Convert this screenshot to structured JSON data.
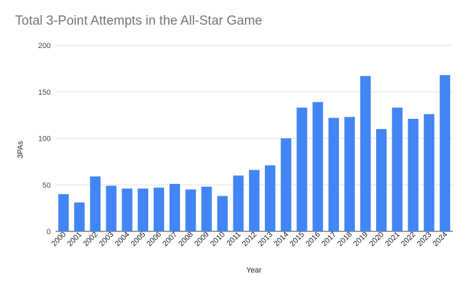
{
  "chart_data": {
    "type": "bar",
    "title": "Total 3-Point Attempts in the All-Star Game",
    "xlabel": "Year",
    "ylabel": "3PAs",
    "categories": [
      "2000",
      "2001",
      "2002",
      "2003",
      "2004",
      "2005",
      "2006",
      "2007",
      "2008",
      "2009",
      "2010",
      "2011",
      "2012",
      "2013",
      "2014",
      "2015",
      "2016",
      "2017",
      "2018",
      "2019",
      "2020",
      "2021",
      "2022",
      "2023",
      "2024"
    ],
    "values": [
      40,
      31,
      59,
      49,
      46,
      46,
      47,
      51,
      45,
      48,
      38,
      60,
      66,
      71,
      100,
      133,
      139,
      122,
      123,
      167,
      110,
      133,
      121,
      126,
      168
    ],
    "ylim": [
      0,
      200
    ],
    "yticks": [
      0,
      50,
      100,
      150,
      200
    ],
    "grid": true,
    "bar_color": "#4285f4",
    "gridline_color": "#e0e0e0",
    "title_color": "#757575"
  }
}
